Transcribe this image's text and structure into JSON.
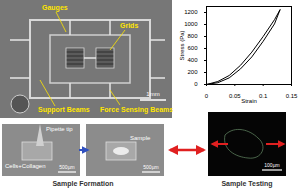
{
  "chart_data": {
    "type": "line",
    "x_label": "Strain",
    "y_label": "Stress (Pa)",
    "x": [
      0,
      0.02,
      0.04,
      0.06,
      0.08,
      0.1,
      0.12,
      0.13,
      0.12,
      0.1,
      0.08,
      0.06,
      0.04,
      0.02,
      0
    ],
    "values": [
      0,
      50,
      150,
      320,
      540,
      800,
      1080,
      1250,
      1010,
      720,
      460,
      260,
      110,
      30,
      0
    ],
    "color": "#000000",
    "xlim": [
      0,
      0.15
    ],
    "xticks": [
      0,
      0.05,
      0.1,
      0.15
    ],
    "ylim": [
      0,
      1300
    ],
    "yticks": [
      0,
      200,
      400,
      600,
      800,
      1000,
      1200
    ],
    "grid": false
  },
  "panels": {
    "device": {
      "labels": [
        "Gauges",
        "Grids",
        "Support Beams",
        "Force Sensing Beams"
      ],
      "scale_bar": "1mm"
    },
    "formation": {
      "caption": "Sample Formation",
      "labels": [
        "Pipette tip",
        "Cells+Collagen",
        "Sample"
      ],
      "scale_bars": [
        "500µm",
        "500µm"
      ]
    },
    "testing": {
      "caption": "Sample Testing",
      "scale_bar": "100µm"
    }
  }
}
